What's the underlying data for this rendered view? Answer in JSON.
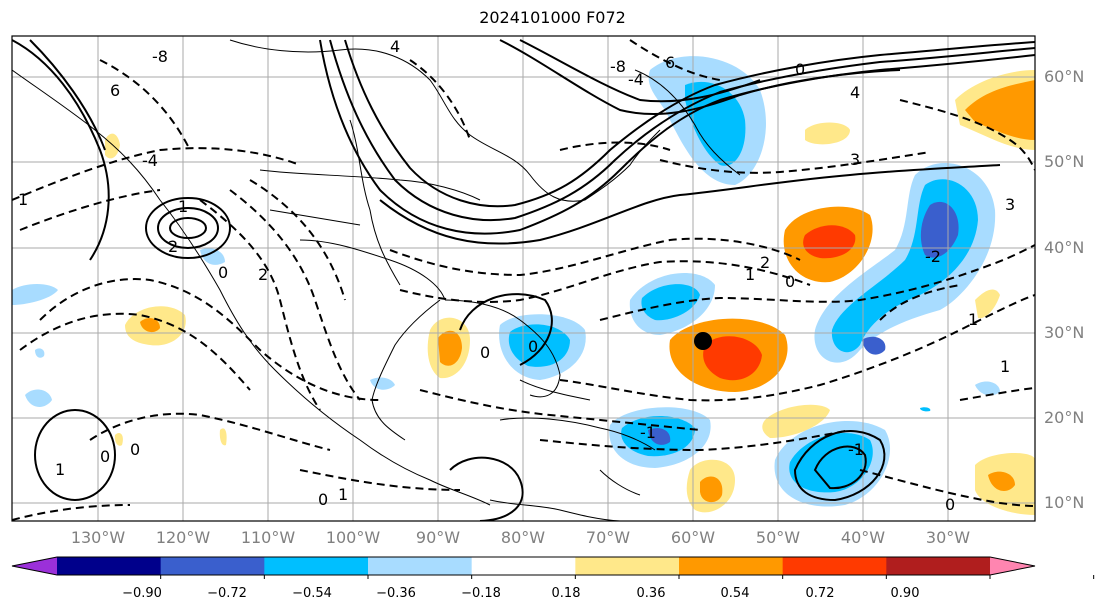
{
  "title": "2024101000 F072",
  "lon_labels": [
    "130°W",
    "120°W",
    "110°W",
    "100°W",
    "90°W",
    "80°W",
    "70°W",
    "60°W",
    "50°W",
    "40°W",
    "30°W"
  ],
  "lat_labels": [
    "60°N",
    "50°N",
    "40°N",
    "30°N",
    "20°N",
    "10°N"
  ],
  "colorbar": {
    "ticks": [
      "−0.90",
      "−0.72",
      "−0.54",
      "−0.36",
      "−0.18",
      "0.18",
      "0.36",
      "0.54",
      "0.72",
      "0.90"
    ],
    "colors": [
      "#9b30d9",
      "#00008b",
      "#3a5fcd",
      "#00bfff",
      "#a8dcff",
      "#ffffff",
      "#ffe88a",
      "#ff9900",
      "#ff3a00",
      "#b01e1e",
      "#ff85b0"
    ]
  },
  "contour_labels": [
    "-8",
    "4",
    "6",
    "6",
    "1",
    "2",
    "-4",
    "1",
    "-8",
    "-4",
    "4",
    "3",
    "0",
    "3",
    "2",
    "0",
    "1",
    "2",
    "0",
    "-2",
    "1",
    "0",
    "0",
    "-1",
    "0",
    "1",
    "0",
    "-1",
    "1",
    "0",
    "0",
    "1"
  ],
  "marker": {
    "type": "dot",
    "color": "#000000"
  }
}
